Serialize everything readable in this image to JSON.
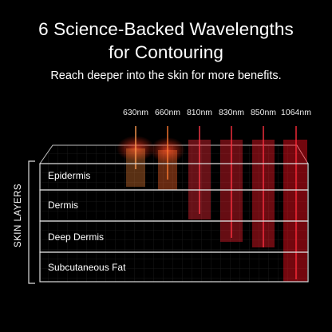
{
  "headline": {
    "line1": "6 Science-Backed Wavelengths",
    "line2": "for Contouring"
  },
  "subtitle": "Reach deeper into the skin for more benefits.",
  "wavelengths": [
    {
      "label": "630nm",
      "color": "#ff8a3a",
      "depth_layer": 1
    },
    {
      "label": "660nm",
      "color": "#ff6a2a",
      "depth_layer": 1
    },
    {
      "label": "810nm",
      "color": "#ff2a3a",
      "depth_layer": 2
    },
    {
      "label": "830nm",
      "color": "#ff2030",
      "depth_layer": 3
    },
    {
      "label": "850nm",
      "color": "#ff1a28",
      "depth_layer": 3
    },
    {
      "label": "1064nm",
      "color": "#ff1020",
      "depth_layer": 4
    }
  ],
  "axis_label": "SKIN LAYERS",
  "layers": [
    {
      "label": "Epidermis"
    },
    {
      "label": "Dermis"
    },
    {
      "label": "Deep Dermis"
    },
    {
      "label": "Subcutaneous Fat"
    }
  ]
}
